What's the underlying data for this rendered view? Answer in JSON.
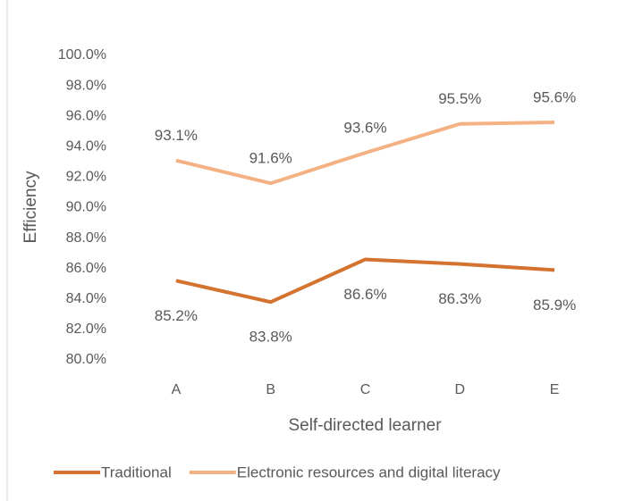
{
  "chart_data": {
    "type": "line",
    "x_label": "Self-directed learner",
    "y_label": "Efficiency",
    "categories": [
      "A",
      "B",
      "C",
      "D",
      "E"
    ],
    "series": [
      {
        "name": "Traditional",
        "color": "#d4722f",
        "values": [
          85.2,
          83.8,
          86.6,
          86.3,
          85.9
        ],
        "value_labels": [
          "85.2%",
          "83.8%",
          "86.6%",
          "86.3%",
          "85.9%"
        ]
      },
      {
        "name": "Electronic resources and digital literacy",
        "color": "#f4b183",
        "values": [
          93.1,
          91.6,
          93.6,
          95.5,
          95.6
        ],
        "value_labels": [
          "93.1%",
          "91.6%",
          "93.6%",
          "95.5%",
          "95.6%"
        ]
      }
    ],
    "ylim": [
      80,
      100
    ],
    "yticks": [
      {
        "value": 80,
        "label": "80.0%"
      },
      {
        "value": 82,
        "label": "82.0%"
      },
      {
        "value": 84,
        "label": "84.0%"
      },
      {
        "value": 86,
        "label": "86.0%"
      },
      {
        "value": 88,
        "label": "88.0%"
      },
      {
        "value": 90,
        "label": "90.0%"
      },
      {
        "value": 92,
        "label": "92.0%"
      },
      {
        "value": 94,
        "label": "94.0%"
      },
      {
        "value": 96,
        "label": "96.0%"
      },
      {
        "value": 98,
        "label": "98.0%"
      },
      {
        "value": 100,
        "label": "100.0%"
      }
    ],
    "grid": false,
    "legend": "bottom"
  }
}
